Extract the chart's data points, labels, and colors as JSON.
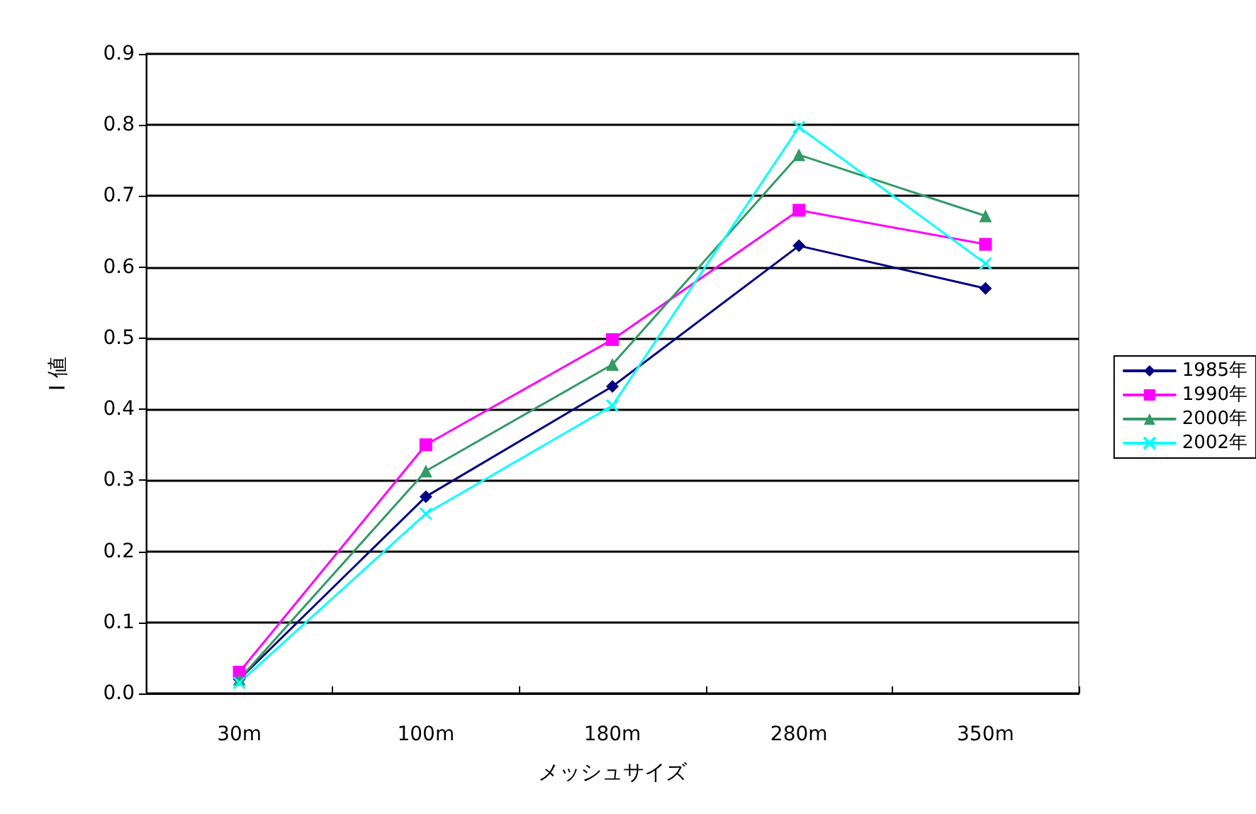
{
  "chart_data": {
    "type": "line",
    "xlabel": "メッシュサイズ",
    "ylabel": "I 値",
    "categories": [
      "30m",
      "100m",
      "180m",
      "280m",
      "350m"
    ],
    "series": [
      {
        "name": "1985年",
        "color": "#000080",
        "marker": "diamond",
        "values": [
          0.02,
          0.277,
          0.432,
          0.63,
          0.57
        ]
      },
      {
        "name": "1990年",
        "color": "#ff00ff",
        "marker": "square",
        "values": [
          0.03,
          0.35,
          0.498,
          0.68,
          0.632
        ]
      },
      {
        "name": "2000年",
        "color": "#339966",
        "marker": "triangle",
        "values": [
          0.02,
          0.313,
          0.463,
          0.758,
          0.672
        ]
      },
      {
        "name": "2002年",
        "color": "#00ffff",
        "marker": "cross",
        "values": [
          0.015,
          0.253,
          0.405,
          0.797,
          0.605
        ]
      }
    ],
    "ylim": [
      0,
      0.9
    ],
    "yticks": [
      {
        "value": 0,
        "label": "0.0"
      },
      0.1,
      0.2,
      0.3,
      0.4,
      0.5,
      0.6,
      0.7,
      0.8,
      0.9
    ],
    "grid": "y",
    "legend": "right",
    "line_style": "solid"
  }
}
